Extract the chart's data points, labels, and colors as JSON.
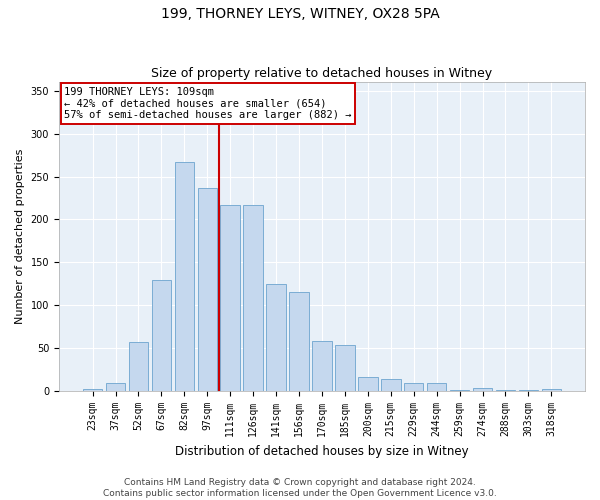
{
  "title1": "199, THORNEY LEYS, WITNEY, OX28 5PA",
  "title2": "Size of property relative to detached houses in Witney",
  "xlabel": "Distribution of detached houses by size in Witney",
  "ylabel": "Number of detached properties",
  "categories": [
    "23sqm",
    "37sqm",
    "52sqm",
    "67sqm",
    "82sqm",
    "97sqm",
    "111sqm",
    "126sqm",
    "141sqm",
    "156sqm",
    "170sqm",
    "185sqm",
    "200sqm",
    "215sqm",
    "229sqm",
    "244sqm",
    "259sqm",
    "274sqm",
    "288sqm",
    "303sqm",
    "318sqm"
  ],
  "values": [
    2,
    10,
    57,
    130,
    267,
    237,
    217,
    217,
    125,
    115,
    58,
    54,
    16,
    14,
    9,
    9,
    1,
    4,
    1,
    1,
    2
  ],
  "bar_color": "#c5d8ee",
  "bar_edge_color": "#7badd4",
  "vline_color": "#cc0000",
  "annotation_lines": [
    "199 THORNEY LEYS: 109sqm",
    "← 42% of detached houses are smaller (654)",
    "57% of semi-detached houses are larger (882) →"
  ],
  "annotation_box_facecolor": "#ffffff",
  "annotation_box_edgecolor": "#cc0000",
  "ylim": [
    0,
    360
  ],
  "yticks": [
    0,
    50,
    100,
    150,
    200,
    250,
    300,
    350
  ],
  "fig_facecolor": "#ffffff",
  "plot_facecolor": "#e8f0f8",
  "footer1": "Contains HM Land Registry data © Crown copyright and database right 2024.",
  "footer2": "Contains public sector information licensed under the Open Government Licence v3.0.",
  "title1_fontsize": 10,
  "title2_fontsize": 9,
  "xlabel_fontsize": 8.5,
  "ylabel_fontsize": 8,
  "tick_fontsize": 7,
  "annotation_fontsize": 7.5,
  "footer_fontsize": 6.5
}
